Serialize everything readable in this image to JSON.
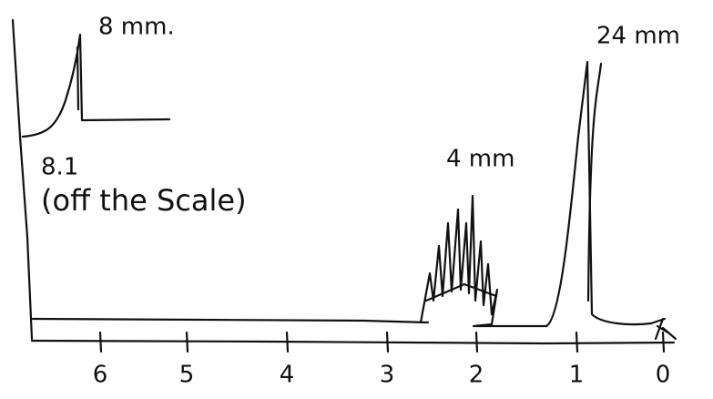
{
  "annotations": {
    "inset_height": "8 mm.",
    "inset_shift": "8.1",
    "inset_note": "(off the Scale)",
    "multiplet_height": "4 mm",
    "tall_peak_height": "24 mm"
  },
  "axis": {
    "tick_labels": [
      "6",
      "5",
      "4",
      "3",
      "2",
      "1",
      "0"
    ]
  }
}
